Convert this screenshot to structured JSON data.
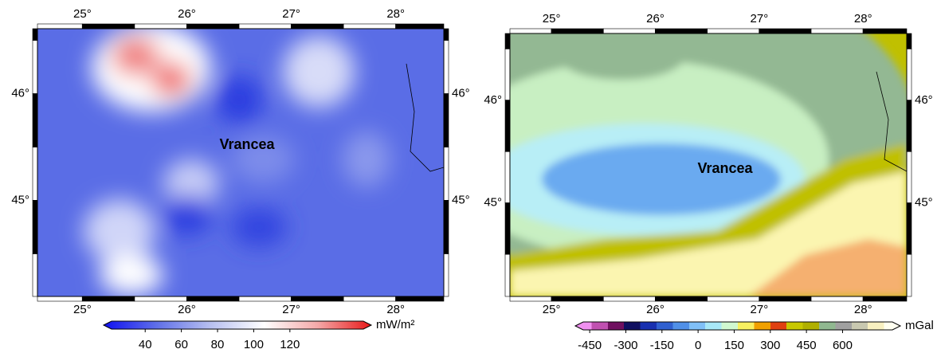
{
  "maps": [
    {
      "xlim": [
        24.57,
        28.46
      ],
      "ylim": [
        44.1,
        46.61
      ],
      "xticks": [
        {
          "value": 25,
          "label": "25°"
        },
        {
          "value": 26,
          "label": "26°"
        },
        {
          "value": 27,
          "label": "27°"
        },
        {
          "value": 28,
          "label": "28°"
        }
      ],
      "yticks": [
        {
          "value": 45,
          "label": "45°"
        },
        {
          "value": 46,
          "label": "46°"
        }
      ],
      "annotation": "Vrancea",
      "colorbar": {
        "range": [
          17,
          165
        ],
        "ticks": [
          40,
          60,
          80,
          100,
          120
        ],
        "unit": "mW/m²",
        "colors": [
          "#1010f0",
          "#6070e8",
          "#b8c0f0",
          "#ffffff",
          "#f4a8a8",
          "#e81818"
        ]
      }
    },
    {
      "xlim": [
        24.6,
        28.42
      ],
      "ylim": [
        44.09,
        46.65
      ],
      "xticks": [
        {
          "value": 25,
          "label": "25°"
        },
        {
          "value": 26,
          "label": "26°"
        },
        {
          "value": 27,
          "label": "27°"
        },
        {
          "value": 28,
          "label": "28°"
        }
      ],
      "yticks": [
        {
          "value": 45,
          "label": "45°"
        },
        {
          "value": 46,
          "label": "46°"
        }
      ],
      "annotation": "Vrancea",
      "colorbar": {
        "range": [
          -510,
          840
        ],
        "ticks": [
          -450,
          -300,
          -150,
          0,
          150,
          300,
          450,
          600
        ],
        "unit": "mGal",
        "colors": [
          "#f090f0",
          "#c050b0",
          "#701060",
          "#101060",
          "#1830b0",
          "#3060d0",
          "#5090e8",
          "#80c0f8",
          "#a8e8f8",
          "#d0f8d0",
          "#f8f060",
          "#f0a000",
          "#e04010",
          "#c8c800",
          "#b0b000",
          "#90b890",
          "#a0a0a0",
          "#c8c8b0",
          "#f8f0c0",
          "#fffff0"
        ]
      }
    }
  ]
}
